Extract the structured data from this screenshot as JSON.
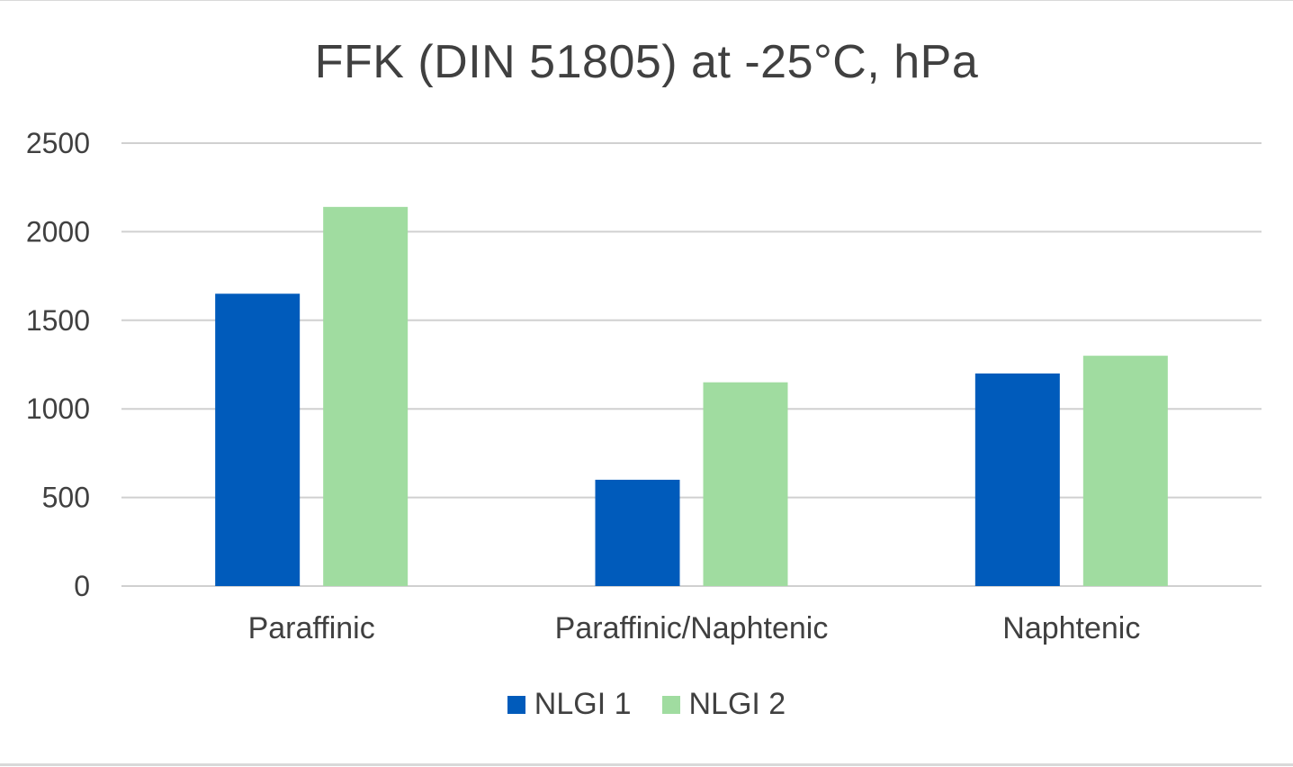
{
  "chart_data": {
    "type": "bar",
    "title": "FFK (DIN 51805) at -25°C, hPa",
    "categories": [
      "Paraffinic",
      "Paraffinic/Naphtenic",
      "Naphtenic"
    ],
    "series": [
      {
        "name": "NLGI 1",
        "values": [
          1650,
          600,
          1200
        ],
        "color": "#005bbb"
      },
      {
        "name": "NLGI 2",
        "values": [
          2140,
          1150,
          1300
        ],
        "color": "#a0dca0"
      }
    ],
    "y_ticks": [
      "0",
      "500",
      "1000",
      "1500",
      "2000",
      "2500"
    ],
    "ylim": [
      0,
      2500
    ],
    "xlabel": "",
    "ylabel": "",
    "grid": true,
    "legend_position": "bottom",
    "gridline_color": "#d0d0d0"
  }
}
